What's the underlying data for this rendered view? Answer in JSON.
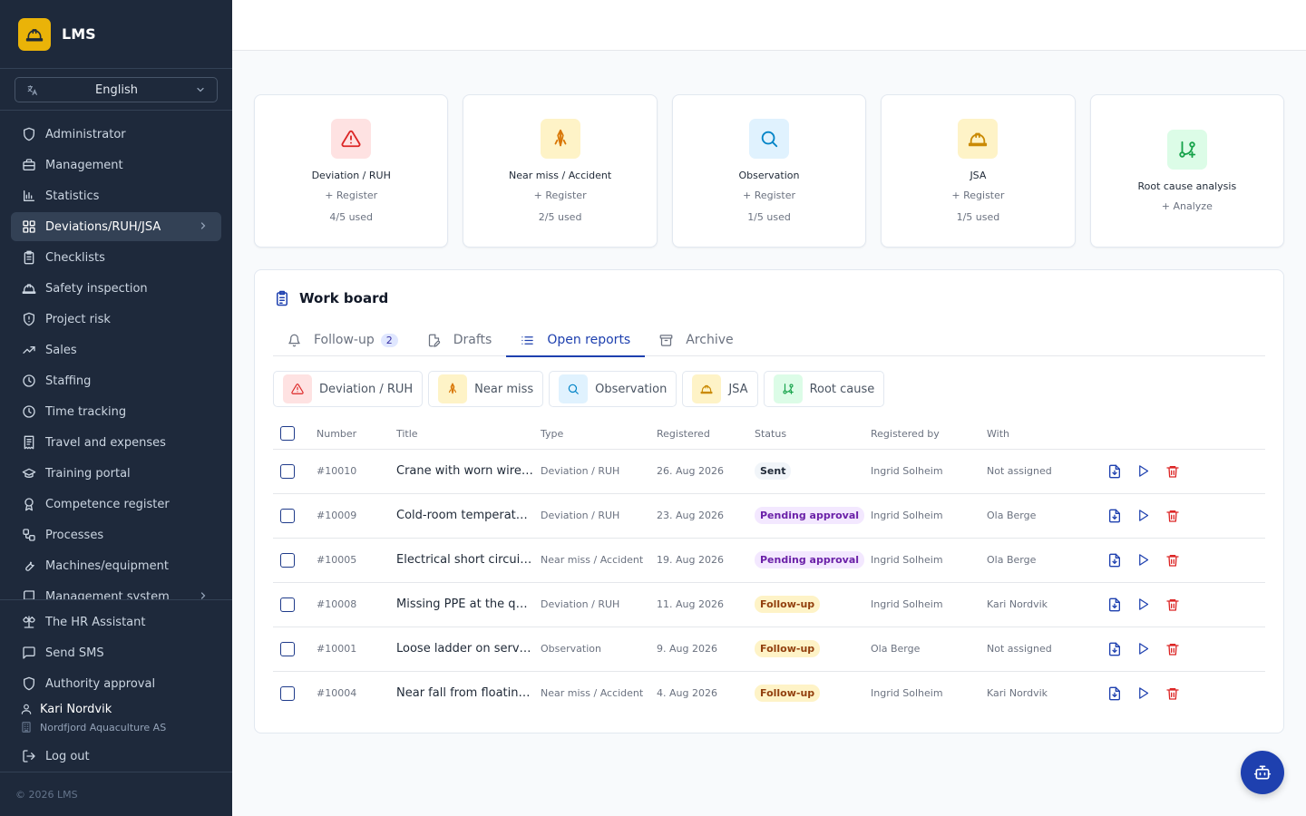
{
  "app": {
    "name": "LMS"
  },
  "language": {
    "selected": "English"
  },
  "sidebar": {
    "items": [
      {
        "label": "Administrator",
        "icon": "shield-icon",
        "active": false
      },
      {
        "label": "Management",
        "icon": "briefcase-icon",
        "active": false
      },
      {
        "label": "Statistics",
        "icon": "bar-chart-icon",
        "active": false
      },
      {
        "label": "Deviations/RUH/JSA",
        "icon": "grid-icon",
        "active": true
      },
      {
        "label": "Checklists",
        "icon": "clipboard-icon",
        "active": false
      },
      {
        "label": "Safety inspection",
        "icon": "hardhat-icon",
        "active": false
      },
      {
        "label": "Project risk",
        "icon": "shield-alert-icon",
        "active": false
      },
      {
        "label": "Sales",
        "icon": "trend-icon",
        "active": false
      },
      {
        "label": "Staffing",
        "icon": "clock-icon",
        "active": false
      },
      {
        "label": "Time tracking",
        "icon": "clock-icon",
        "active": false
      },
      {
        "label": "Travel and expenses",
        "icon": "receipt-icon",
        "active": false
      },
      {
        "label": "Training portal",
        "icon": "graduation-icon",
        "active": false
      },
      {
        "label": "Competence register",
        "icon": "award-icon",
        "active": false
      },
      {
        "label": "Processes",
        "icon": "workflow-icon",
        "active": false
      },
      {
        "label": "Machines/equipment",
        "icon": "wrench-icon",
        "active": false
      },
      {
        "label": "Management system",
        "icon": "book-icon",
        "active": false
      }
    ],
    "bottom": [
      {
        "label": "The HR Assistant",
        "icon": "scale-icon"
      },
      {
        "label": "Send SMS",
        "icon": "message-icon"
      },
      {
        "label": "Authority approval",
        "icon": "shield-icon"
      }
    ],
    "user": {
      "name": "Kari Nordvik",
      "company": "Nordfjord Aquaculture AS"
    },
    "logout": "Log out",
    "footer": "© 2026 LMS"
  },
  "cards": [
    {
      "title": "Deviation / RUH",
      "action": "Register",
      "used": "4/5 used",
      "icon": "warning-icon",
      "bg": "#fee2e2",
      "fg": "#dc2626"
    },
    {
      "title": "Near miss / Accident",
      "action": "Register",
      "used": "2/5 used",
      "icon": "near-miss-icon",
      "bg": "#fef3c7",
      "fg": "#d97706"
    },
    {
      "title": "Observation",
      "action": "Register",
      "used": "1/5 used",
      "icon": "search-icon",
      "bg": "#e0f2fe",
      "fg": "#0284c7"
    },
    {
      "title": "JSA",
      "action": "Register",
      "used": "1/5 used",
      "icon": "hardhat-icon",
      "bg": "#fef3c7",
      "fg": "#ca8a04"
    },
    {
      "title": "Root cause analysis",
      "action": "Analyze",
      "used": "",
      "icon": "git-branch-icon",
      "bg": "#dcfce7",
      "fg": "#16a34a"
    }
  ],
  "board": {
    "title": "Work board",
    "tabs": [
      {
        "label": "Follow-up",
        "badge": "2",
        "icon": "bell-icon",
        "active": false
      },
      {
        "label": "Drafts",
        "badge": "",
        "icon": "file-pen-icon",
        "active": false
      },
      {
        "label": "Open reports",
        "badge": "",
        "icon": "list-icon",
        "active": true
      },
      {
        "label": "Archive",
        "badge": "",
        "icon": "archive-icon",
        "active": false
      }
    ],
    "filters": [
      {
        "label": "Deviation / RUH",
        "icon": "warning-icon",
        "bg": "#fee2e2",
        "fg": "#dc2626"
      },
      {
        "label": "Near miss",
        "icon": "near-miss-icon",
        "bg": "#fef3c7",
        "fg": "#d97706"
      },
      {
        "label": "Observation",
        "icon": "search-icon",
        "bg": "#e0f2fe",
        "fg": "#0284c7"
      },
      {
        "label": "JSA",
        "icon": "hardhat-icon",
        "bg": "#fef3c7",
        "fg": "#ca8a04"
      },
      {
        "label": "Root cause",
        "icon": "git-branch-icon",
        "bg": "#dcfce7",
        "fg": "#16a34a"
      }
    ],
    "columns": [
      "Number",
      "Title",
      "Type",
      "Registered",
      "Status",
      "Registered by",
      "With"
    ],
    "rows": [
      {
        "number": "#10010",
        "title": "Crane with worn wire rope",
        "type": "Deviation / RUH",
        "registered": "26. Aug 2026",
        "status": "Sent",
        "status_kind": "sent",
        "by": "Ingrid Solheim",
        "with": "Not assigned"
      },
      {
        "number": "#10009",
        "title": "Cold-room temperature alarm",
        "type": "Deviation / RUH",
        "registered": "23. Aug 2026",
        "status": "Pending approval",
        "status_kind": "pending",
        "by": "Ingrid Solheim",
        "with": "Ola Berge"
      },
      {
        "number": "#10005",
        "title": "Electrical short circuit in panel",
        "type": "Near miss / Accident",
        "registered": "19. Aug 2026",
        "status": "Pending approval",
        "status_kind": "pending",
        "by": "Ingrid Solheim",
        "with": "Ola Berge"
      },
      {
        "number": "#10008",
        "title": "Missing PPE at the quay",
        "type": "Deviation / RUH",
        "registered": "11. Aug 2026",
        "status": "Follow-up",
        "status_kind": "follow",
        "by": "Ingrid Solheim",
        "with": "Kari Nordvik"
      },
      {
        "number": "#10001",
        "title": "Loose ladder on service boat",
        "type": "Observation",
        "registered": "9. Aug 2026",
        "status": "Follow-up",
        "status_kind": "follow",
        "by": "Ola Berge",
        "with": "Not assigned"
      },
      {
        "number": "#10004",
        "title": "Near fall from floating collar",
        "type": "Near miss / Accident",
        "registered": "4. Aug 2026",
        "status": "Follow-up",
        "status_kind": "follow",
        "by": "Ingrid Solheim",
        "with": "Kari Nordvik"
      }
    ]
  },
  "colors": {
    "sidebar_bg": "#1e293b",
    "accent": "#1e40af",
    "brand": "#eab308",
    "delete": "#dc2626"
  }
}
